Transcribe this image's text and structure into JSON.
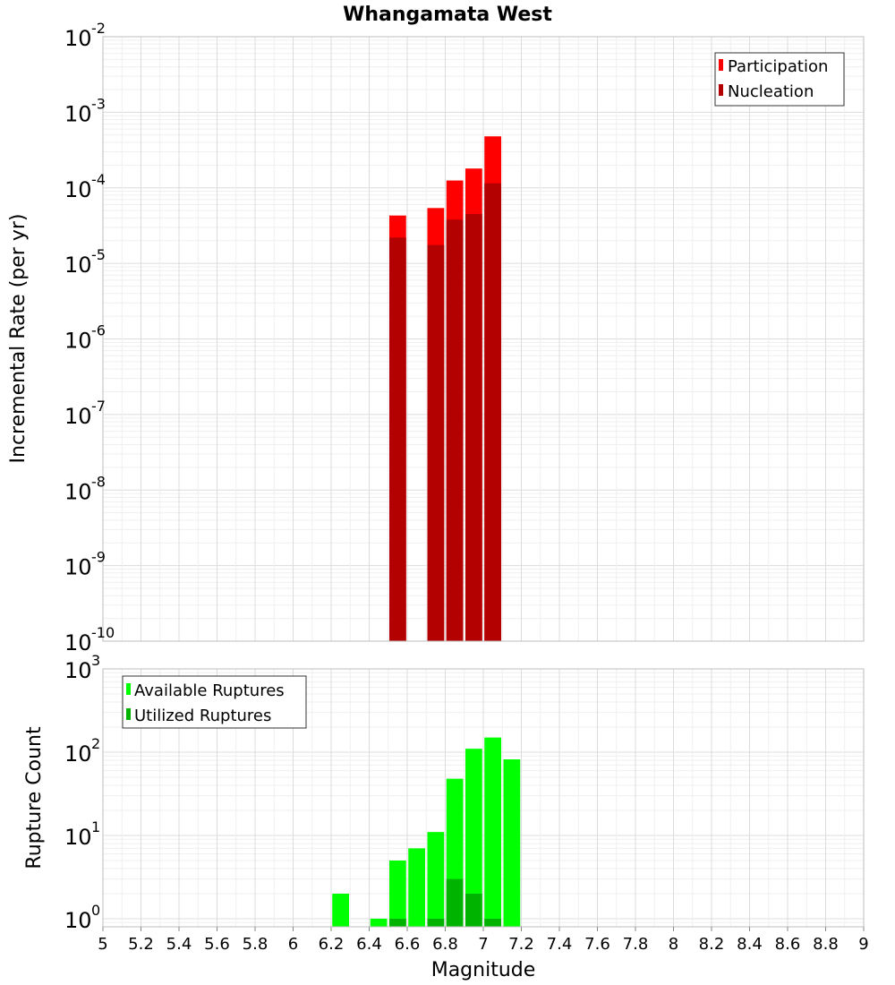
{
  "chart_data": [
    {
      "type": "bar",
      "title": "Whangamata West",
      "xlabel": "Magnitude",
      "ylabel": "Incremental Rate (per yr)",
      "yscale": "log",
      "ylim": [
        1e-10,
        0.01
      ],
      "xlim": [
        5,
        9
      ],
      "grid": true,
      "legend": "top-right",
      "bin_width": 0.1,
      "x": [
        6.55,
        6.75,
        6.85,
        6.95,
        7.05
      ],
      "series": [
        {
          "name": "Participation",
          "color": "#ff0000",
          "values": [
            4.3e-05,
            5.4e-05,
            0.000125,
            0.00018,
            0.00048
          ]
        },
        {
          "name": "Nucleation",
          "color": "#b30000",
          "values": [
            2.2e-05,
            1.75e-05,
            3.8e-05,
            4.5e-05,
            0.000115
          ]
        }
      ]
    },
    {
      "type": "bar",
      "xlabel": "Magnitude",
      "ylabel": "Rupture Count",
      "yscale": "log",
      "ylim": [
        0.8,
        1000
      ],
      "xlim": [
        5,
        9
      ],
      "grid": true,
      "legend": "top-left",
      "bin_width": 0.1,
      "x": [
        6.25,
        6.45,
        6.55,
        6.65,
        6.75,
        6.85,
        6.95,
        7.05,
        7.15
      ],
      "series": [
        {
          "name": "Available Ruptures",
          "color": "#00ff00",
          "values": [
            2,
            1,
            5,
            7,
            11,
            48,
            110,
            150,
            82
          ]
        },
        {
          "name": "Utilized Ruptures",
          "color": "#00b300",
          "values": [
            0,
            0,
            1,
            0,
            1,
            3,
            2,
            1,
            0
          ]
        }
      ]
    }
  ],
  "x_ticks": [
    "5",
    "5.2",
    "5.4",
    "5.6",
    "5.8",
    "6",
    "6.2",
    "6.4",
    "6.6",
    "6.8",
    "7",
    "7.2",
    "7.4",
    "7.6",
    "7.8",
    "8",
    "8.2",
    "8.4",
    "8.6",
    "8.8",
    "9"
  ],
  "top_y_ticks": [
    {
      "base": "10",
      "exp": "-2"
    },
    {
      "base": "10",
      "exp": "-3"
    },
    {
      "base": "10",
      "exp": "-4"
    },
    {
      "base": "10",
      "exp": "-5"
    },
    {
      "base": "10",
      "exp": "-6"
    },
    {
      "base": "10",
      "exp": "-7"
    },
    {
      "base": "10",
      "exp": "-8"
    },
    {
      "base": "10",
      "exp": "-9"
    },
    {
      "base": "10",
      "exp": "-10"
    }
  ],
  "bottom_y_ticks": [
    {
      "base": "10",
      "exp": "3"
    },
    {
      "base": "10",
      "exp": "2"
    },
    {
      "base": "10",
      "exp": "1"
    },
    {
      "base": "10",
      "exp": "0"
    }
  ]
}
